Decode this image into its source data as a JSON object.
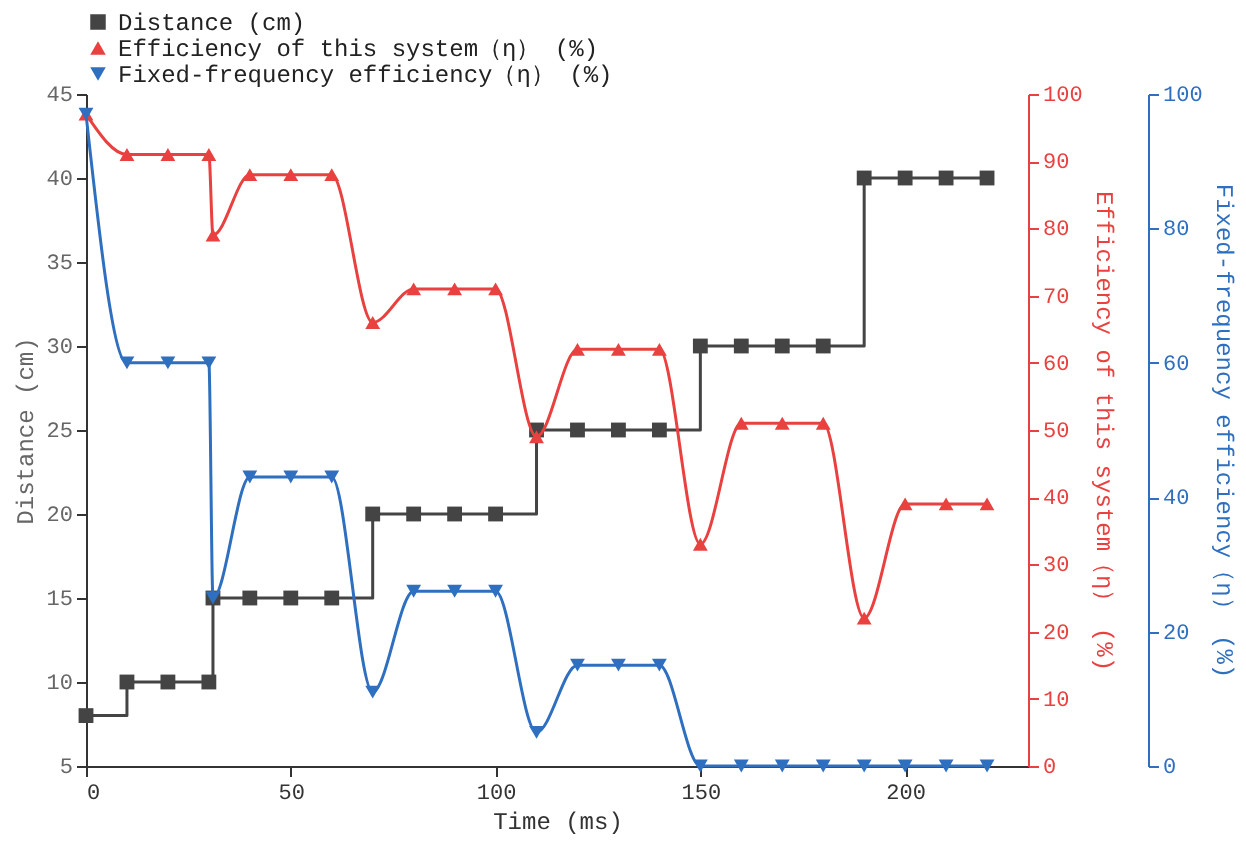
{
  "chart_data": {
    "type": "line",
    "xlabel": "Time (ms)",
    "ylabel": "Distance (cm)",
    "y2label": "Efficiency of this system（η） (%)",
    "y3label": "Fixed-frequency efficiency（η） (%)",
    "x": [
      0,
      10,
      20,
      30,
      31,
      40,
      50,
      60,
      70,
      80,
      90,
      100,
      110,
      120,
      130,
      140,
      150,
      160,
      170,
      180,
      190,
      200,
      210,
      220
    ],
    "xlim": [
      0,
      230
    ],
    "xticks": [
      0,
      50,
      100,
      150,
      200
    ],
    "ylim": [
      5,
      45
    ],
    "yticks": [
      5,
      10,
      15,
      20,
      25,
      30,
      35,
      40,
      45
    ],
    "y2lim": [
      0,
      100
    ],
    "y2ticks": [
      0,
      10,
      20,
      30,
      40,
      50,
      60,
      70,
      80,
      90,
      100
    ],
    "y3lim": [
      0,
      100
    ],
    "y3ticks": [
      0,
      20,
      40,
      60,
      80,
      100
    ],
    "grid": false,
    "legend": "top",
    "series": [
      {
        "name": "Distance (cm)",
        "type": "step",
        "marker": "square",
        "axis": "y",
        "color": "#444444",
        "values": [
          8,
          10,
          10,
          10,
          15,
          15,
          15,
          15,
          20,
          20,
          20,
          20,
          25,
          25,
          25,
          25,
          30,
          30,
          30,
          30,
          40,
          40,
          40,
          40
        ]
      },
      {
        "name": "Efficiency of this system（η） (%)",
        "type": "line",
        "marker": "triangle",
        "axis": "y2",
        "color": "#e8413f",
        "values": [
          97,
          91,
          91,
          91,
          79,
          88,
          88,
          88,
          66,
          71,
          71,
          71,
          49,
          62,
          62,
          62,
          33,
          51,
          51,
          51,
          22,
          39,
          39,
          39
        ]
      },
      {
        "name": "Fixed-frequency efficiency（η） (%)",
        "type": "line",
        "marker": "triangle-down",
        "axis": "y3",
        "color": "#2f6fc0",
        "values": [
          97,
          60,
          60,
          60,
          25,
          43,
          43,
          43,
          11,
          26,
          26,
          26,
          5,
          15,
          15,
          15,
          0,
          0,
          0,
          0,
          0,
          0,
          0,
          0
        ]
      }
    ]
  }
}
